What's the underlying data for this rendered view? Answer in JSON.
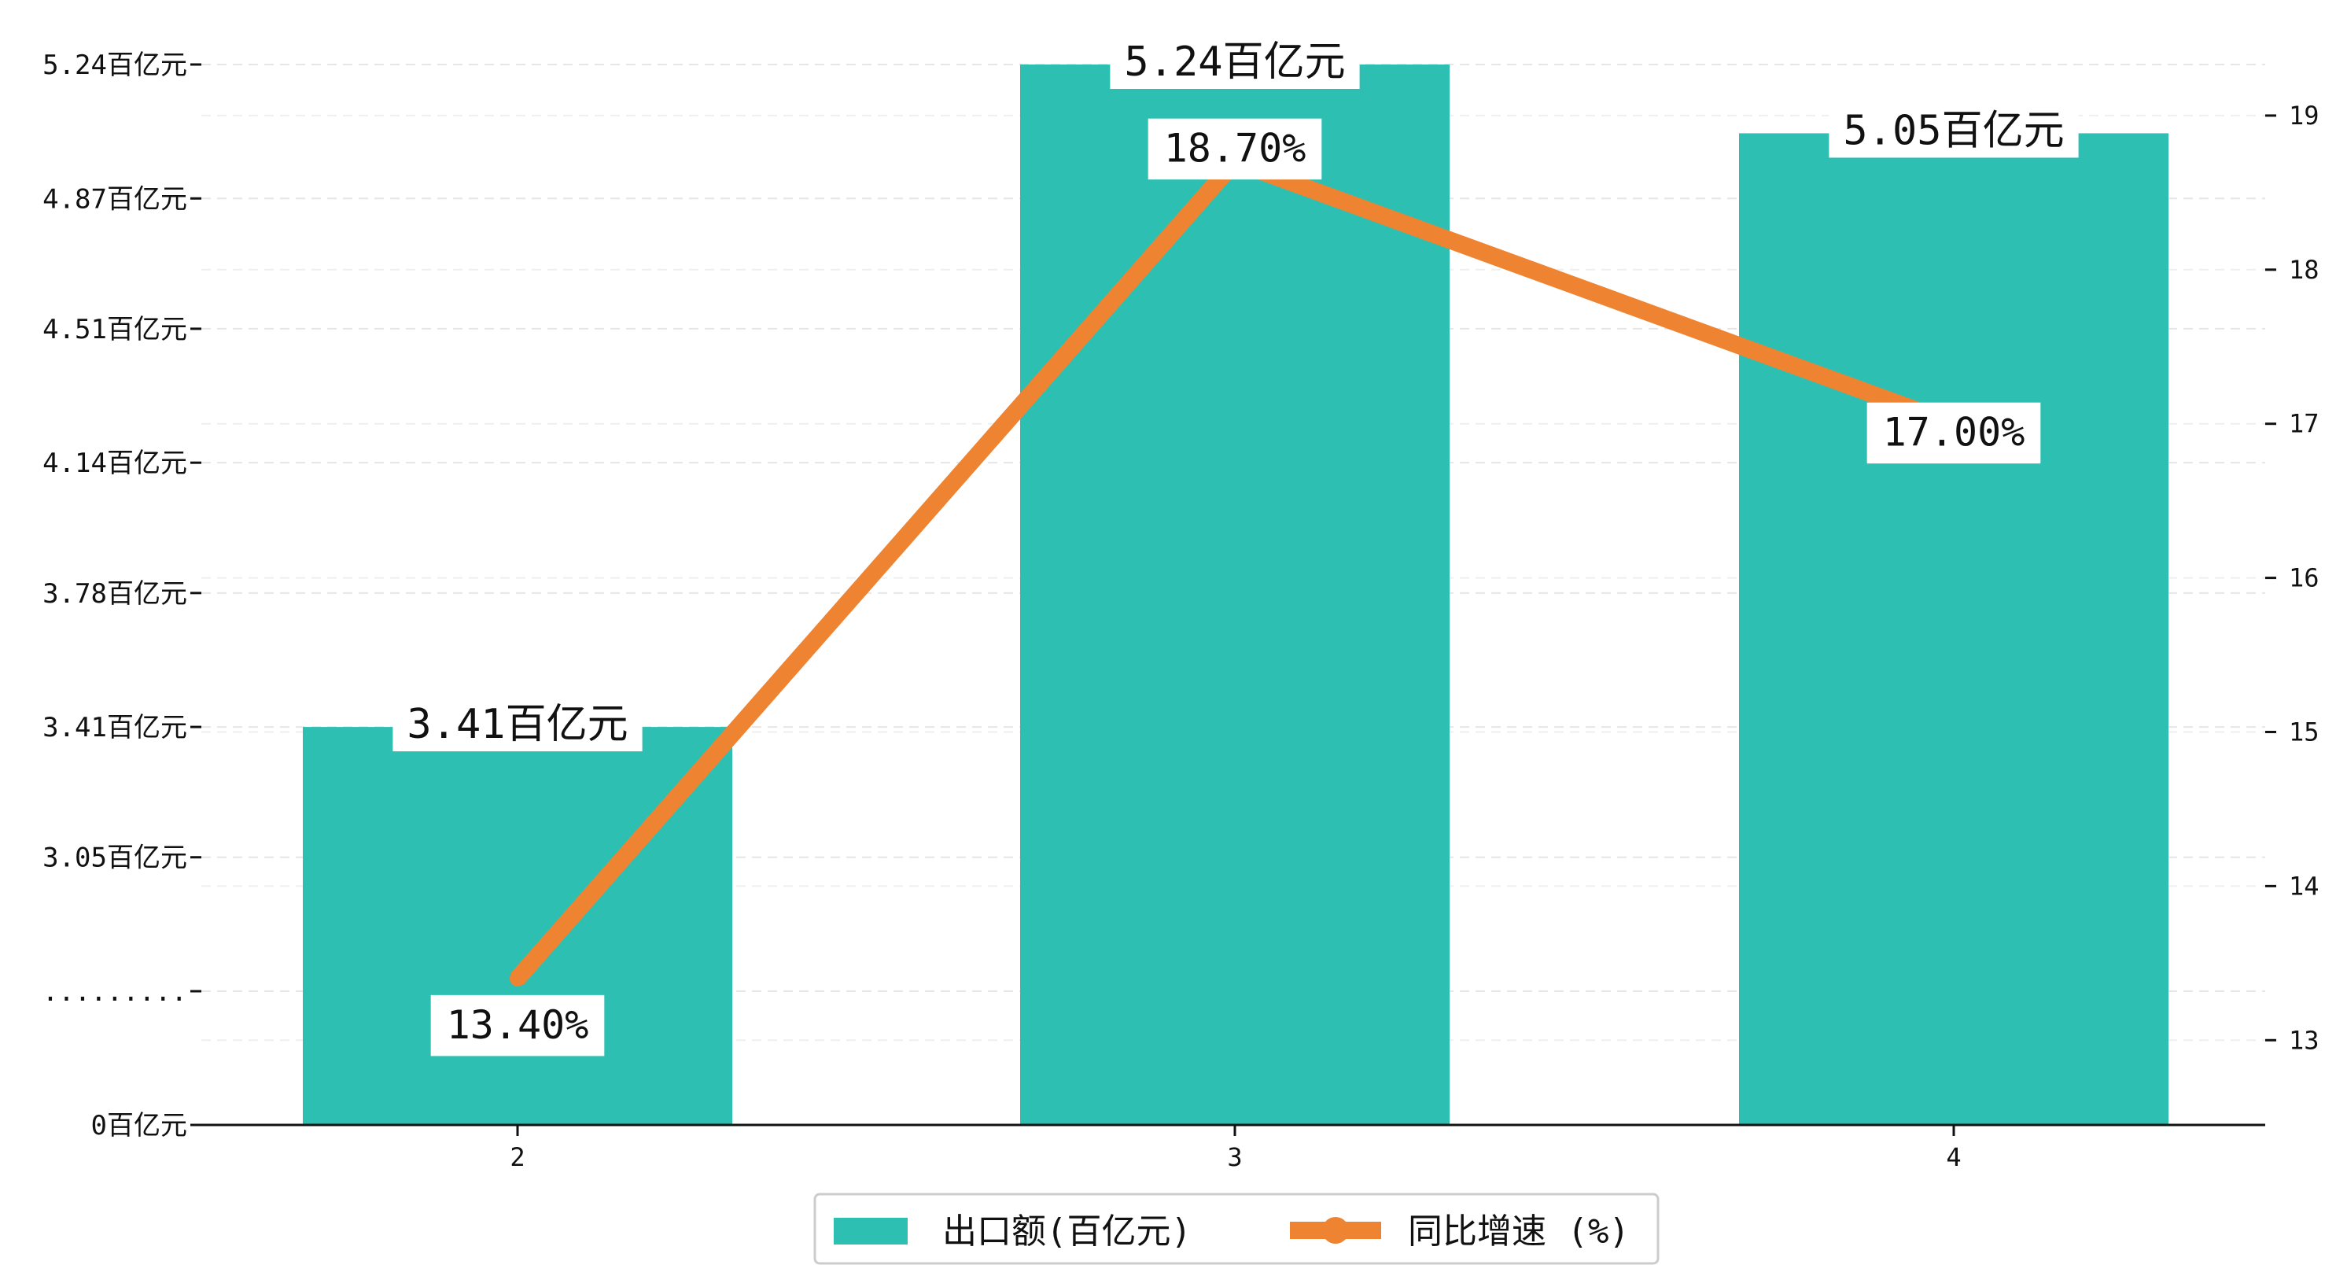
{
  "chart_data": {
    "type": "bar",
    "categories": [
      "2",
      "3",
      "4"
    ],
    "series": [
      {
        "name": "出口额(百亿元)",
        "type": "bar",
        "axis": "left",
        "values": [
          3.41,
          5.24,
          5.05
        ],
        "labels": [
          "3.41百亿元",
          "5.24百亿元",
          "5.05百亿元"
        ]
      },
      {
        "name": "同比增速 (%)",
        "type": "line",
        "axis": "right",
        "values": [
          13.4,
          18.7,
          17.0
        ],
        "labels": [
          "13.40%",
          "18.70%",
          "17.00%"
        ]
      }
    ],
    "left_axis": {
      "ticks": [
        {
          "value": 0,
          "label": "0百亿元"
        },
        {
          "value": 2.68,
          "label": "........."
        },
        {
          "value": 3.05,
          "label": "3.05百亿元"
        },
        {
          "value": 3.41,
          "label": "3.41百亿元"
        },
        {
          "value": 3.78,
          "label": "3.78百亿元"
        },
        {
          "value": 4.14,
          "label": "4.14百亿元"
        },
        {
          "value": 4.51,
          "label": "4.51百亿元"
        },
        {
          "value": 4.87,
          "label": "4.87百亿元"
        },
        {
          "value": 5.24,
          "label": "5.24百亿元"
        }
      ],
      "broken": true,
      "break_between": [
        0,
        2.68
      ]
    },
    "right_axis": {
      "range": [
        12.45,
        19.75
      ],
      "ticks": [
        {
          "value": 13,
          "label": "13"
        },
        {
          "value": 14,
          "label": "14"
        },
        {
          "value": 15,
          "label": "15"
        },
        {
          "value": 16,
          "label": "16"
        },
        {
          "value": 17,
          "label": "17"
        },
        {
          "value": 18,
          "label": "18"
        },
        {
          "value": 19,
          "label": "19"
        }
      ]
    },
    "grid": "horizontal-dashed",
    "legend_position": "bottom-center",
    "colors": {
      "bar": "#2ebfb3",
      "line": "#ee8432"
    }
  }
}
